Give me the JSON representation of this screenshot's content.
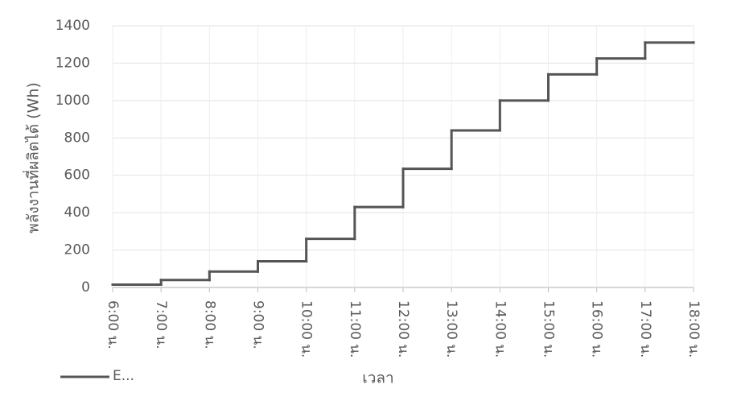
{
  "chart_data": {
    "type": "step-line",
    "step": "post",
    "y_label": "พลังงานที่ผลิตได้ (Wh)",
    "x_label": "เวลา",
    "categories": [
      "6:00 น.",
      "7:00 น.",
      "8:00 น.",
      "9:00 น.",
      "10:00 น.",
      "11:00 น.",
      "12:00 น.",
      "13:00 น.",
      "14:00 น.",
      "15:00 น.",
      "16:00 น.",
      "17:00 น.",
      "18:00 น."
    ],
    "series": [
      {
        "name": "E...",
        "color": "#555555",
        "values": [
          15,
          40,
          85,
          140,
          260,
          430,
          635,
          840,
          1000,
          1140,
          1225,
          1310,
          1310
        ]
      }
    ],
    "ylim": [
      0,
      1400
    ],
    "yticks": [
      0,
      200,
      400,
      600,
      800,
      1000,
      1200,
      1400
    ],
    "grid": true
  }
}
